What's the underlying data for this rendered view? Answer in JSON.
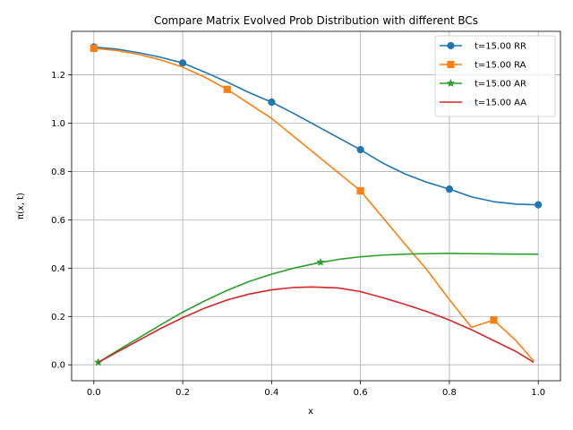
{
  "chart_data": {
    "type": "line",
    "title": "Compare Matrix Evolved Prob Distribution with different BCs",
    "xlabel": "x",
    "ylabel_prefix": "π(x, t)",
    "xlim": [
      -0.05,
      1.05
    ],
    "ylim": [
      -0.066,
      1.38
    ],
    "grid": true,
    "legend_position": "top-right",
    "xticks": [
      {
        "value": 0.0,
        "label": "0.0"
      },
      {
        "value": 0.2,
        "label": "0.2"
      },
      {
        "value": 0.4,
        "label": "0.4"
      },
      {
        "value": 0.6,
        "label": "0.6"
      },
      {
        "value": 0.8,
        "label": "0.8"
      },
      {
        "value": 1.0,
        "label": "1.0"
      }
    ],
    "yticks": [
      {
        "value": 0.0,
        "label": "0.0"
      },
      {
        "value": 0.2,
        "label": "0.2"
      },
      {
        "value": 0.4,
        "label": "0.4"
      },
      {
        "value": 0.6,
        "label": "0.6"
      },
      {
        "value": 0.8,
        "label": "0.8"
      },
      {
        "value": 1.0,
        "label": "1.0"
      },
      {
        "value": 1.2,
        "label": "1.2"
      }
    ],
    "series": [
      {
        "name": "t=15.00 RR",
        "color": "#1f77b4",
        "marker": "circle",
        "x": [
          0.0,
          0.05,
          0.1,
          0.15,
          0.2,
          0.25,
          0.3,
          0.35,
          0.4,
          0.45,
          0.5,
          0.55,
          0.6,
          0.65,
          0.7,
          0.75,
          0.8,
          0.85,
          0.9,
          0.95,
          1.0
        ],
        "y": [
          1.315,
          1.307,
          1.292,
          1.273,
          1.249,
          1.211,
          1.17,
          1.126,
          1.087,
          1.04,
          0.99,
          0.94,
          0.89,
          0.835,
          0.79,
          0.755,
          0.727,
          0.695,
          0.675,
          0.665,
          0.662
        ],
        "marker_x": [
          0.0,
          0.2,
          0.4,
          0.6,
          0.8,
          1.0
        ],
        "marker_y": [
          1.315,
          1.249,
          1.087,
          0.89,
          0.727,
          0.662
        ]
      },
      {
        "name": "t=15.00 RA",
        "color": "#ff7f0e",
        "marker": "square",
        "x": [
          0.0,
          0.05,
          0.1,
          0.15,
          0.2,
          0.25,
          0.3,
          0.35,
          0.4,
          0.45,
          0.5,
          0.55,
          0.6,
          0.65,
          0.7,
          0.75,
          0.8,
          0.85,
          0.9,
          0.95,
          0.99
        ],
        "y": [
          1.31,
          1.301,
          1.285,
          1.262,
          1.232,
          1.19,
          1.14,
          1.08,
          1.02,
          0.945,
          0.87,
          0.795,
          0.72,
          0.61,
          0.5,
          0.392,
          0.27,
          0.155,
          0.185,
          0.1,
          0.015
        ],
        "marker_x": [
          0.0,
          0.3,
          0.6,
          0.9
        ],
        "marker_y": [
          1.31,
          1.14,
          0.72,
          0.185
        ]
      },
      {
        "name": "t=15.00 AR",
        "color": "#2ca02c",
        "marker": "star",
        "x": [
          0.01,
          0.05,
          0.1,
          0.15,
          0.2,
          0.25,
          0.3,
          0.35,
          0.4,
          0.45,
          0.5,
          0.55,
          0.6,
          0.65,
          0.7,
          0.75,
          0.8,
          0.85,
          0.9,
          0.95,
          1.0
        ],
        "y": [
          0.01,
          0.055,
          0.11,
          0.165,
          0.218,
          0.265,
          0.308,
          0.345,
          0.375,
          0.4,
          0.42,
          0.436,
          0.447,
          0.454,
          0.458,
          0.46,
          0.461,
          0.46,
          0.459,
          0.458,
          0.458
        ],
        "marker_x": [
          0.01,
          0.51
        ],
        "marker_y": [
          0.01,
          0.424
        ]
      },
      {
        "name": "t=15.00 AA",
        "color": "#d62728",
        "marker": "none",
        "x": [
          0.01,
          0.05,
          0.1,
          0.15,
          0.2,
          0.25,
          0.3,
          0.35,
          0.4,
          0.45,
          0.49,
          0.55,
          0.6,
          0.65,
          0.7,
          0.75,
          0.8,
          0.85,
          0.9,
          0.95,
          0.99
        ],
        "y": [
          0.01,
          0.05,
          0.1,
          0.15,
          0.195,
          0.235,
          0.268,
          0.293,
          0.31,
          0.32,
          0.322,
          0.318,
          0.303,
          0.278,
          0.25,
          0.22,
          0.185,
          0.145,
          0.1,
          0.055,
          0.01
        ],
        "marker_x": [],
        "marker_y": []
      }
    ]
  }
}
